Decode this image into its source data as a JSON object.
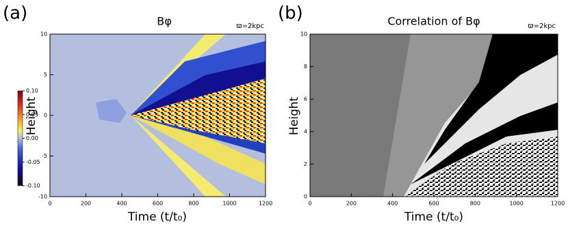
{
  "chart_data": [
    {
      "type": "heatmap",
      "panel": "(a)",
      "title": "Bφ",
      "annotation": "ϖ=2kpc",
      "xlabel": "Time (t/t₀)",
      "ylabel": "Height",
      "xlim": [
        0,
        1200
      ],
      "xticks": [
        0,
        200,
        400,
        600,
        800,
        1000,
        1200
      ],
      "ylim": [
        -10,
        10
      ],
      "yticks": [
        -10,
        -5,
        0,
        5,
        10
      ],
      "clim": [
        -0.1,
        0.1
      ],
      "cticks": [
        {
          "value": 0.1,
          "label": "0.10"
        },
        {
          "value": 0.05,
          "label": "0.05"
        },
        {
          "value": 0,
          "label": "0.00"
        },
        {
          "value": -0.05,
          "label": "-0.05"
        },
        {
          "value": -0.1,
          "label": "-0.10"
        }
      ]
    },
    {
      "type": "heatmap",
      "panel": "(b)",
      "title": "Correlation of Bφ",
      "annotation": "ϖ=2kpc",
      "xlabel": "Time (t/t₀)",
      "ylabel": "Height",
      "xlim": [
        0,
        1200
      ],
      "xticks": [
        0,
        200,
        400,
        600,
        800,
        1000,
        1200
      ],
      "ylim": [
        0,
        10
      ],
      "yticks": [
        0,
        2,
        4,
        6,
        8,
        10
      ]
    }
  ]
}
